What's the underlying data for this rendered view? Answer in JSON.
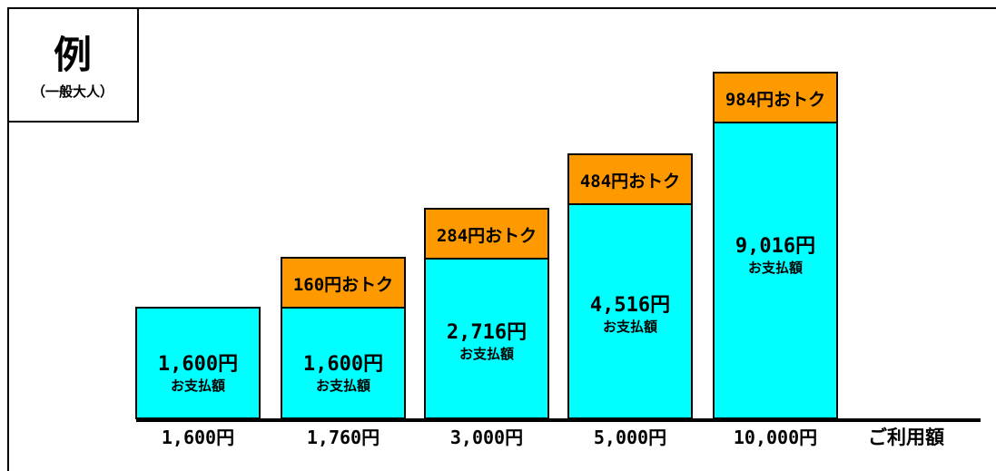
{
  "legend_box": {
    "title": "例",
    "subtitle": "（一般大人）"
  },
  "axis_label": "ご利用額",
  "colors": {
    "paid": "#00ffff",
    "savings": "#ff9900",
    "border": "#000000",
    "background": "#ffffff"
  },
  "chart_data": {
    "type": "bar",
    "stacked": true,
    "categories": [
      "1,600円",
      "1,760円",
      "3,000円",
      "5,000円",
      "10,000円"
    ],
    "xlabel": "ご利用額",
    "series": [
      {
        "name": "お支払額",
        "values": [
          1600,
          1600,
          2716,
          4516,
          9016
        ]
      },
      {
        "name": "おトク",
        "values": [
          0,
          160,
          284,
          484,
          984
        ]
      }
    ],
    "paid_labels": [
      "1,600円",
      "1,600円",
      "2,716円",
      "4,516円",
      "9,016円"
    ],
    "paid_sublabel": "お支払額",
    "savings_labels": [
      "",
      "160円おトク",
      "284円おトク",
      "484円おトク",
      "984円おトク"
    ],
    "bar_heights_px": [],
    "ylim": [
      0,
      10000
    ]
  }
}
